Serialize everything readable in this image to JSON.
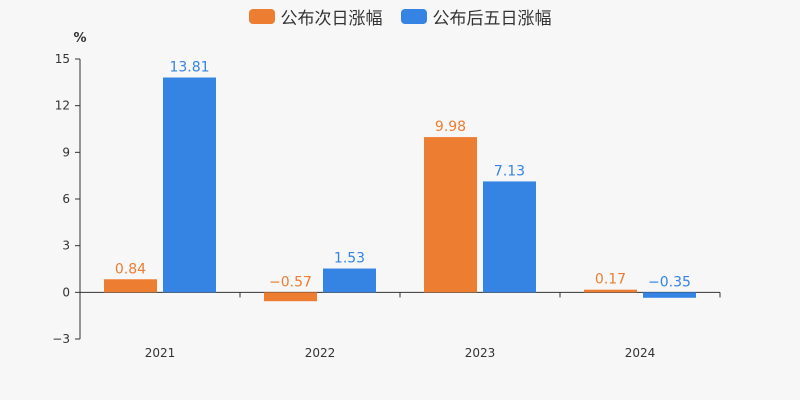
{
  "chart_data": {
    "type": "bar",
    "categories": [
      "2021",
      "2022",
      "2023",
      "2024"
    ],
    "series": [
      {
        "name": "公布次日涨幅",
        "color": "#ed7d31",
        "values": [
          0.84,
          -0.57,
          9.98,
          0.17
        ]
      },
      {
        "name": "公布后五日涨幅",
        "color": "#3584e4",
        "values": [
          13.81,
          1.53,
          7.13,
          -0.35
        ]
      }
    ],
    "data_labels": [
      [
        "0.84",
        "−0.57",
        "9.98",
        "0.17"
      ],
      [
        "13.81",
        "1.53",
        "7.13",
        "−0.35"
      ]
    ],
    "ylabel": "%",
    "ylim": [
      -3,
      15
    ],
    "yticks": [
      -3,
      0,
      3,
      6,
      9,
      12,
      15
    ],
    "ytick_labels": [
      "−3",
      "0",
      "3",
      "6",
      "9",
      "12",
      "15"
    ],
    "legend_position": "top-center",
    "grid": false
  }
}
